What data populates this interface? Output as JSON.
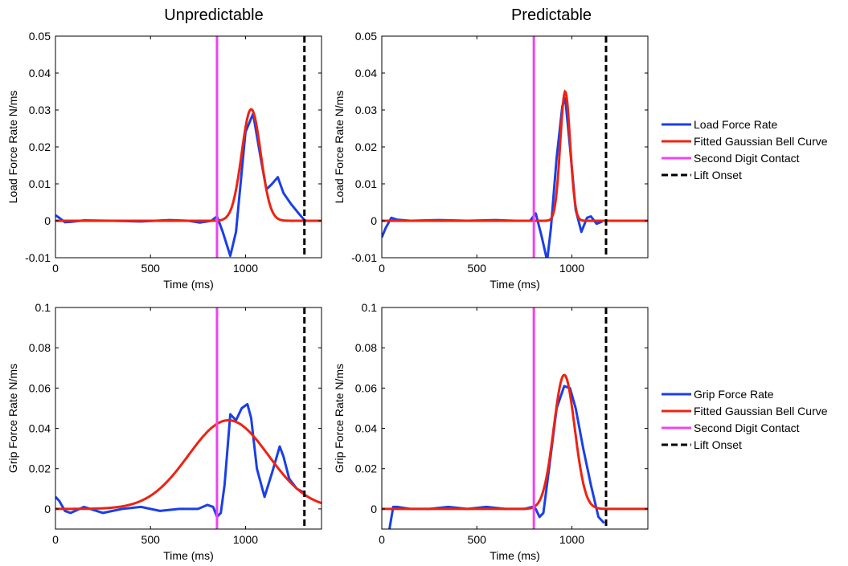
{
  "column_titles": [
    "Unpredictable",
    "Predictable"
  ],
  "colors": {
    "measured": "#1a3fe8",
    "fitted": "#ee2211",
    "second_digit": "#ee44ee",
    "lift_onset": "#000000"
  },
  "legends": [
    {
      "entries": [
        "Load Force Rate",
        "Fitted Gaussian Bell Curve",
        "Second Digit Contact",
        "Lift Onset"
      ]
    },
    {
      "entries": [
        "Grip Force Rate",
        "Fitted Gaussian Bell Curve",
        "Second Digit Contact",
        "Lift Onset"
      ]
    }
  ],
  "chart_data": [
    {
      "type": "line",
      "title": "Unpredictable",
      "xlabel": "Time (ms)",
      "ylabel": "Load Force Rate N/ms",
      "xlim": [
        0,
        1400
      ],
      "ylim": [
        -0.01,
        0.05
      ],
      "xticks": [
        0,
        500,
        1000
      ],
      "yticks": [
        -0.01,
        0,
        0.01,
        0.02,
        0.03,
        0.04,
        0.05
      ],
      "ytick_labels": [
        "-0.01",
        "0",
        "0.01",
        "0.02",
        "0.03",
        "0.04",
        "0.05"
      ],
      "second_digit_contact": 850,
      "lift_onset": 1310,
      "series": [
        {
          "name": "Load Force Rate",
          "x": [
            0,
            20,
            50,
            80,
            150,
            300,
            450,
            600,
            700,
            760,
            820,
            850,
            880,
            920,
            950,
            1000,
            1040,
            1080,
            1110,
            1140,
            1170,
            1200,
            1240,
            1280,
            1310
          ],
          "y": [
            0.0015,
            0.0008,
            -0.0004,
            -0.0003,
            0.0001,
            0.0,
            -0.0002,
            0.0002,
            0.0,
            -0.0005,
            0.0,
            0.0012,
            -0.003,
            -0.0095,
            -0.003,
            0.024,
            0.029,
            0.017,
            0.0085,
            0.01,
            0.0118,
            0.0075,
            0.0045,
            0.002,
            0.0002
          ]
        },
        {
          "name": "Fitted Gaussian Bell Curve",
          "gaussian": {
            "amplitude": 0.0302,
            "mu": 1030,
            "sigma": 50
          },
          "xrange": [
            0,
            1400
          ]
        }
      ]
    },
    {
      "type": "line",
      "title": "Predictable",
      "xlabel": "Time (ms)",
      "ylabel": "Load Force Rate N/ms",
      "xlim": [
        0,
        1400
      ],
      "ylim": [
        -0.01,
        0.05
      ],
      "xticks": [
        0,
        500,
        1000
      ],
      "yticks": [
        -0.01,
        0,
        0.01,
        0.02,
        0.03,
        0.04,
        0.05
      ],
      "ytick_labels": [
        "-0.01",
        "0",
        "0.01",
        "0.02",
        "0.03",
        "0.04",
        "0.05"
      ],
      "second_digit_contact": 800,
      "lift_onset": 1180,
      "series": [
        {
          "name": "Load Force Rate",
          "x": [
            0,
            20,
            50,
            80,
            150,
            300,
            450,
            600,
            700,
            780,
            810,
            840,
            870,
            890,
            920,
            950,
            965,
            990,
            1020,
            1050,
            1080,
            1100,
            1130,
            1160
          ],
          "y": [
            -0.0045,
            -0.002,
            0.0008,
            0.0003,
            0.0,
            0.0002,
            0.0,
            0.0002,
            0.0,
            0.0,
            0.002,
            -0.004,
            -0.0108,
            -0.002,
            0.017,
            0.031,
            0.0332,
            0.02,
            0.003,
            -0.003,
            0.0008,
            0.0012,
            -0.0008,
            -0.0002
          ]
        },
        {
          "name": "Fitted Gaussian Bell Curve",
          "gaussian": {
            "amplitude": 0.035,
            "mu": 965,
            "sigma": 26
          },
          "xrange": [
            0,
            1400
          ]
        }
      ]
    },
    {
      "type": "line",
      "title": "Unpredictable",
      "xlabel": "Time (ms)",
      "ylabel": "Grip Force Rate N/ms",
      "xlim": [
        0,
        1400
      ],
      "ylim": [
        -0.01,
        0.1
      ],
      "xticks": [
        0,
        500,
        1000
      ],
      "yticks": [
        0,
        0.02,
        0.04,
        0.06,
        0.08,
        0.1
      ],
      "ytick_labels": [
        "0",
        "0.02",
        "0.04",
        "0.06",
        "0.08",
        "0.1"
      ],
      "second_digit_contact": 850,
      "lift_onset": 1310,
      "series": [
        {
          "name": "Grip Force Rate",
          "x": [
            0,
            20,
            50,
            80,
            150,
            250,
            350,
            450,
            550,
            650,
            750,
            800,
            830,
            850,
            870,
            890,
            920,
            950,
            980,
            1010,
            1030,
            1060,
            1100,
            1140,
            1180,
            1200,
            1230,
            1270,
            1310
          ],
          "y": [
            0.006,
            0.004,
            -0.001,
            -0.002,
            0.001,
            -0.002,
            0.0,
            0.001,
            -0.001,
            0.0,
            0.0,
            0.002,
            0.001,
            -0.004,
            -0.002,
            0.012,
            0.047,
            0.044,
            0.05,
            0.052,
            0.045,
            0.02,
            0.006,
            0.018,
            0.031,
            0.026,
            0.015,
            0.01,
            0.008
          ]
        },
        {
          "name": "Fitted Gaussian Bell Curve",
          "gaussian": {
            "amplitude": 0.044,
            "mu": 910,
            "sigma": 210
          },
          "xrange": [
            0,
            1400
          ]
        }
      ]
    },
    {
      "type": "line",
      "title": "Predictable",
      "xlabel": "Time (ms)",
      "ylabel": "Grip Force Rate N/ms",
      "xlim": [
        0,
        1400
      ],
      "ylim": [
        -0.01,
        0.1
      ],
      "xticks": [
        0,
        500,
        1000
      ],
      "yticks": [
        0,
        0.02,
        0.04,
        0.06,
        0.08,
        0.1
      ],
      "ytick_labels": [
        "0",
        "0.02",
        "0.04",
        "0.06",
        "0.08",
        "0.1"
      ],
      "second_digit_contact": 800,
      "lift_onset": 1180,
      "series": [
        {
          "name": "Grip Force Rate",
          "x": [
            40,
            60,
            80,
            150,
            250,
            350,
            450,
            550,
            650,
            750,
            790,
            810,
            830,
            850,
            880,
            920,
            960,
            990,
            1020,
            1060,
            1100,
            1140,
            1170
          ],
          "y": [
            -0.01,
            0.001,
            0.001,
            0.0,
            0.0,
            0.001,
            0.0,
            0.001,
            0.0,
            0.0,
            0.001,
            0.0,
            -0.004,
            -0.002,
            0.02,
            0.05,
            0.061,
            0.06,
            0.05,
            0.03,
            0.012,
            -0.004,
            -0.007
          ]
        },
        {
          "name": "Fitted Gaussian Bell Curve",
          "gaussian": {
            "amplitude": 0.0665,
            "mu": 960,
            "sigma": 55
          },
          "xrange": [
            0,
            1400
          ]
        }
      ]
    }
  ]
}
